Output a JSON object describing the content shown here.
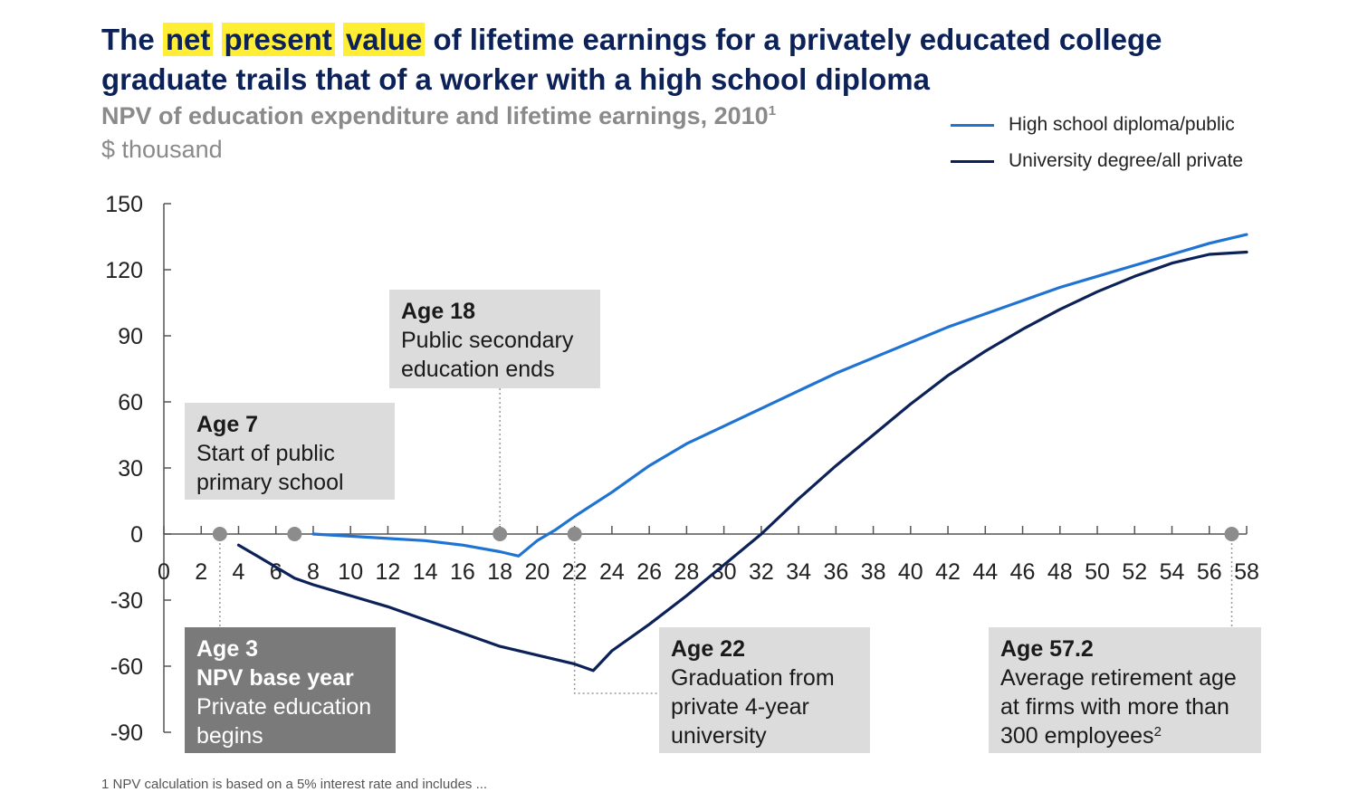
{
  "title": {
    "pre": "The",
    "hl1": "net",
    "hl2": "present",
    "hl3": "value",
    "rest": "of lifetime earnings for a privately educated college graduate trails that of a worker with a high school diploma"
  },
  "subtitle": "NPV of education expenditure and lifetime earnings, 2010",
  "subtitle_sup": "1",
  "unit": "$ thousand",
  "footnote": "1 NPV calculation is based on a 5% interest rate and includes ...",
  "chart_data": {
    "type": "line",
    "title": "NPV of education expenditure and lifetime earnings, 2010",
    "ylabel": "$ thousand",
    "xlabel": "",
    "xlim": [
      0,
      58
    ],
    "ylim": [
      -90,
      150
    ],
    "x_ticks": [
      0,
      2,
      4,
      6,
      8,
      10,
      12,
      14,
      16,
      18,
      20,
      22,
      24,
      26,
      28,
      30,
      32,
      34,
      36,
      38,
      40,
      42,
      44,
      46,
      48,
      50,
      52,
      54,
      56,
      58
    ],
    "y_ticks": [
      150,
      120,
      90,
      60,
      30,
      0,
      -30,
      -60,
      -90
    ],
    "legend_position": "top-right",
    "series": [
      {
        "name": "High school diploma/public",
        "color": "#1f73d3",
        "points": [
          [
            8,
            0
          ],
          [
            10,
            -1
          ],
          [
            12,
            -2
          ],
          [
            14,
            -3
          ],
          [
            16,
            -5
          ],
          [
            18,
            -8
          ],
          [
            19,
            -10
          ],
          [
            20,
            -3
          ],
          [
            21,
            2
          ],
          [
            22,
            8
          ],
          [
            24,
            19
          ],
          [
            26,
            31
          ],
          [
            28,
            41
          ],
          [
            30,
            49
          ],
          [
            32,
            57
          ],
          [
            34,
            65
          ],
          [
            36,
            73
          ],
          [
            38,
            80
          ],
          [
            40,
            87
          ],
          [
            42,
            94
          ],
          [
            44,
            100
          ],
          [
            46,
            106
          ],
          [
            48,
            112
          ],
          [
            50,
            117
          ],
          [
            52,
            122
          ],
          [
            54,
            127
          ],
          [
            56,
            132
          ],
          [
            58,
            136
          ]
        ]
      },
      {
        "name": "University degree/all private",
        "color": "#0b2158",
        "points": [
          [
            4,
            -5
          ],
          [
            5,
            -10
          ],
          [
            7,
            -20
          ],
          [
            8,
            -23
          ],
          [
            10,
            -28
          ],
          [
            12,
            -33
          ],
          [
            14,
            -39
          ],
          [
            16,
            -45
          ],
          [
            18,
            -51
          ],
          [
            20,
            -55
          ],
          [
            22,
            -59
          ],
          [
            23,
            -62
          ],
          [
            24,
            -53
          ],
          [
            26,
            -41
          ],
          [
            28,
            -28
          ],
          [
            30,
            -14
          ],
          [
            32,
            0
          ],
          [
            34,
            16
          ],
          [
            36,
            31
          ],
          [
            38,
            45
          ],
          [
            40,
            59
          ],
          [
            42,
            72
          ],
          [
            44,
            83
          ],
          [
            46,
            93
          ],
          [
            48,
            102
          ],
          [
            50,
            110
          ],
          [
            52,
            117
          ],
          [
            54,
            123
          ],
          [
            56,
            127
          ],
          [
            58,
            128
          ]
        ]
      }
    ],
    "markers": [
      {
        "x": 3,
        "y": 0
      },
      {
        "x": 7,
        "y": 0
      },
      {
        "x": 18,
        "y": 0
      },
      {
        "x": 22,
        "y": 0
      },
      {
        "x": 57.2,
        "y": 0
      }
    ],
    "annotations": [
      {
        "heading": "Age 3",
        "lines": [
          "NPV base year",
          "Private education",
          "begins"
        ],
        "dark": true
      },
      {
        "heading": "Age 7",
        "lines": [
          "Start of public",
          "primary school"
        ],
        "dark": false
      },
      {
        "heading": "Age 18",
        "lines": [
          "Public secondary",
          "education ends"
        ],
        "dark": false
      },
      {
        "heading": "Age 22",
        "lines": [
          "Graduation from",
          "private 4-year",
          "university"
        ],
        "dark": false
      },
      {
        "heading": "Age 57.2",
        "lines": [
          "Average retirement age",
          "at firms with more than",
          "300 employees"
        ],
        "sup": "2",
        "dark": false
      }
    ]
  }
}
